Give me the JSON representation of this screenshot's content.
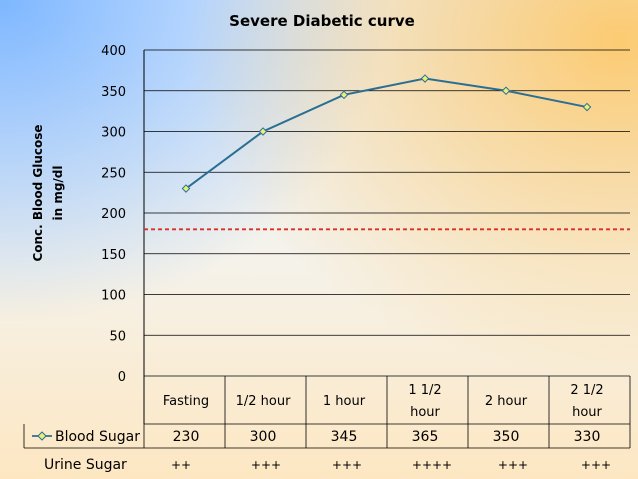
{
  "chart_data": {
    "type": "line",
    "title": "Severe Diabetic curve",
    "ylabel_lines": [
      "Conc. Blood Glucose",
      "in mg/dl"
    ],
    "xlabel": "",
    "ylim": [
      0,
      400
    ],
    "yticks": [
      0,
      50,
      100,
      150,
      200,
      250,
      300,
      350,
      400
    ],
    "categories": [
      [
        "Fasting"
      ],
      [
        "1/2 hour"
      ],
      [
        "1 hour"
      ],
      [
        "1 1/2",
        "hour"
      ],
      [
        "2 hour"
      ],
      [
        "2 1/2",
        "hour"
      ]
    ],
    "series": [
      {
        "name": "Blood Sugar",
        "values": [
          230,
          300,
          345,
          365,
          350,
          330
        ],
        "color": "#2a6f93",
        "marker_fill": "#e8f07a"
      }
    ],
    "reference_line": {
      "value": 180,
      "color": "#d83028",
      "style": "dashed"
    },
    "grid": true,
    "legend": "table-left",
    "data_table": true,
    "urine_sugar": {
      "label": "Urine Sugar",
      "values": [
        "++",
        "+++",
        "+++",
        "++++",
        "+++",
        "+++"
      ]
    }
  }
}
